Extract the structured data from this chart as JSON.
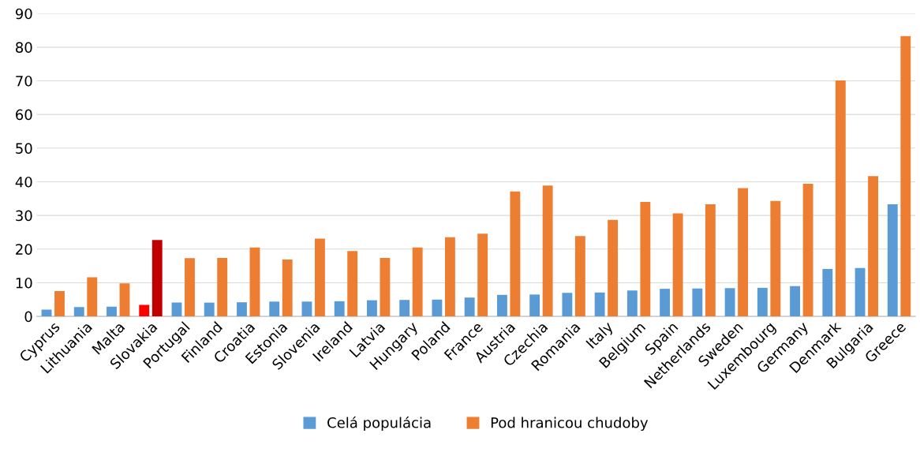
{
  "chart_data": {
    "type": "bar",
    "categories": [
      "Cyprus",
      "Lithuania",
      "Malta",
      "Slovakia",
      "Portugal",
      "Finland",
      "Croatia",
      "Estonia",
      "Slovenia",
      "Ireland",
      "Latvia",
      "Hungary",
      "Poland",
      "France",
      "Austria",
      "Czechia",
      "Romania",
      "Italy",
      "Belgium",
      "Spain",
      "Netherlands",
      "Sweden",
      "Luxembourg",
      "Germany",
      "Denmark",
      "Bulgaria",
      "Greece"
    ],
    "series": [
      {
        "name": "Celá populácia",
        "color": "#5b9bd5",
        "colors": [
          "#5b9bd5",
          "#5b9bd5",
          "#5b9bd5",
          "#ff0000",
          "#5b9bd5",
          "#5b9bd5",
          "#5b9bd5",
          "#5b9bd5",
          "#5b9bd5",
          "#5b9bd5",
          "#5b9bd5",
          "#5b9bd5",
          "#5b9bd5",
          "#5b9bd5",
          "#5b9bd5",
          "#5b9bd5",
          "#5b9bd5",
          "#5b9bd5",
          "#5b9bd5",
          "#5b9bd5",
          "#5b9bd5",
          "#5b9bd5",
          "#5b9bd5",
          "#5b9bd5",
          "#5b9bd5",
          "#5b9bd5",
          "#5b9bd5"
        ],
        "values": [
          2.0,
          2.8,
          2.9,
          3.4,
          4.1,
          4.1,
          4.2,
          4.4,
          4.4,
          4.5,
          4.8,
          4.9,
          5.0,
          5.6,
          6.4,
          6.5,
          7.0,
          7.1,
          7.7,
          8.2,
          8.3,
          8.4,
          8.5,
          9.0,
          14.1,
          14.4,
          33.3
        ]
      },
      {
        "name": "Pod hranicou chudoby",
        "color": "#ed7d31",
        "colors": [
          "#ed7d31",
          "#ed7d31",
          "#ed7d31",
          "#c00000",
          "#ed7d31",
          "#ed7d31",
          "#ed7d31",
          "#ed7d31",
          "#ed7d31",
          "#ed7d31",
          "#ed7d31",
          "#ed7d31",
          "#ed7d31",
          "#ed7d31",
          "#ed7d31",
          "#ed7d31",
          "#ed7d31",
          "#ed7d31",
          "#ed7d31",
          "#ed7d31",
          "#ed7d31",
          "#ed7d31",
          "#ed7d31",
          "#ed7d31",
          "#ed7d31",
          "#ed7d31",
          "#ed7d31"
        ],
        "values": [
          7.5,
          11.6,
          9.8,
          22.7,
          17.3,
          17.4,
          20.5,
          16.9,
          23.1,
          19.4,
          17.4,
          20.5,
          23.5,
          24.6,
          37.1,
          38.9,
          23.9,
          28.7,
          34.0,
          30.6,
          33.3,
          38.1,
          34.3,
          39.4,
          70.1,
          41.7,
          83.3
        ]
      }
    ],
    "ylim": [
      0,
      90
    ],
    "yticks": [
      0,
      10,
      20,
      30,
      40,
      50,
      60,
      70,
      80,
      90
    ],
    "grid": "y",
    "legend": "bottom"
  }
}
